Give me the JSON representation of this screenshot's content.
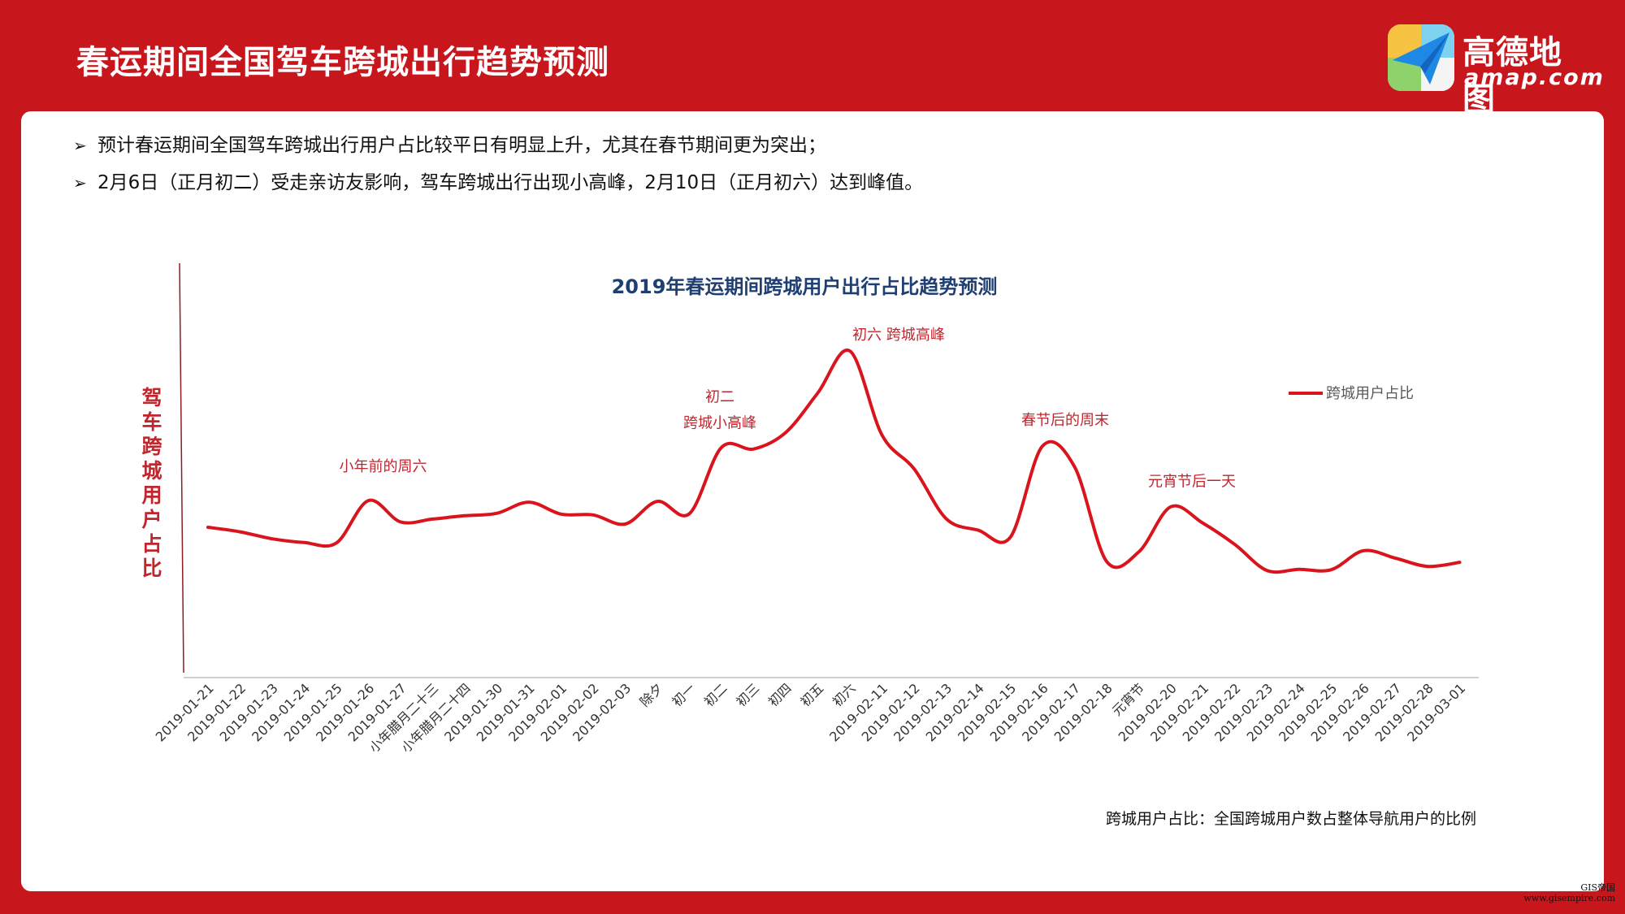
{
  "header": {
    "title": "春运期间全国驾车跨城出行趋势预测"
  },
  "logo": {
    "name": "高德地图",
    "domain": "amap.com",
    "icon": "paper-plane-map-icon"
  },
  "bullets": [
    "预计春运期间全国驾车跨城出行用户占比较平日有明显上升，尤其在春节期间更为突出；",
    "2月6日（正月初二）受走亲访友影响，驾车跨城出行出现小高峰，2月10日（正月初六）达到峰值。"
  ],
  "bullet_marker": "➢",
  "chart_data": {
    "type": "line",
    "title": "2019年春运期间跨城用户出行占比趋势预测",
    "ylabel": "驾车跨城用户占比",
    "xlabel": "",
    "categories": [
      "2019-01-21",
      "2019-01-22",
      "2019-01-23",
      "2019-01-24",
      "2019-01-25",
      "2019-01-26",
      "2019-01-27",
      "小年腊月二十三",
      "小年腊月二十四",
      "2019-01-30",
      "2019-01-31",
      "2019-02-01",
      "2019-02-02",
      "2019-02-03",
      "除夕",
      "初一",
      "初二",
      "初三",
      "初四",
      "初五",
      "初六",
      "2019-02-11",
      "2019-02-12",
      "2019-02-13",
      "2019-02-14",
      "2019-02-15",
      "2019-02-16",
      "2019-02-17",
      "2019-02-18",
      "元宵节",
      "2019-02-20",
      "2019-02-21",
      "2019-02-22",
      "2019-02-23",
      "2019-02-24",
      "2019-02-25",
      "2019-02-26",
      "2019-02-27",
      "2019-02-28",
      "2019-03-01"
    ],
    "series": [
      {
        "name": "跨城用户占比",
        "values": [
          35.5,
          34.4,
          32.7,
          31.8,
          31.7,
          42.0,
          36.8,
          37.5,
          38.3,
          38.9,
          41.6,
          38.7,
          38.5,
          36.3,
          41.8,
          38.8,
          54.9,
          54.5,
          58.5,
          68.1,
          78.3,
          57.9,
          49.7,
          37.6,
          34.8,
          33.1,
          55.2,
          50.2,
          27.2,
          29.5,
          40.5,
          36.5,
          31.3,
          25.0,
          25.3,
          25.2,
          29.8,
          28.0,
          26.0,
          27.0
        ]
      }
    ],
    "ylim": [
      0,
      100
    ],
    "grid": false,
    "legend": "right",
    "annotations": [
      {
        "text": "小年前的周六",
        "category": "2019-01-26"
      },
      {
        "text": "初二",
        "category": "初二"
      },
      {
        "text": "跨城小高峰",
        "category": "初二"
      },
      {
        "text": "初六 跨城高峰",
        "category": "初六"
      },
      {
        "text": "春节后的周末",
        "category": "2019-02-16"
      },
      {
        "text": "元宵节后一天",
        "category": "2019-02-20"
      }
    ],
    "colors": {
      "line": "#d9141c",
      "title": "#1f3f73",
      "annotation": "#c0262e",
      "axis": "#bfbfbf"
    }
  },
  "footnote": "跨城用户占比：全国跨城用户数占整体导航用户的比例",
  "watermark": {
    "line1": "GIS帝国",
    "line2": "www.gisempire.com"
  }
}
